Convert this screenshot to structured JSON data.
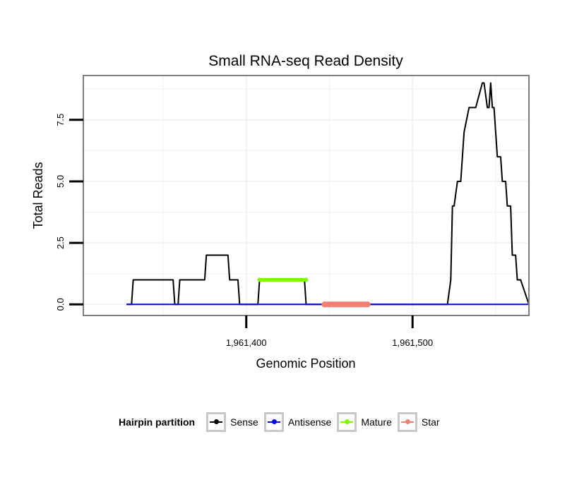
{
  "chart_data": {
    "type": "line",
    "title": "Small RNA-seq Read Density",
    "xlabel": "Genomic Position",
    "ylabel": "Total Reads",
    "xlim": [
      1961302,
      1961570
    ],
    "ylim": [
      -0.45,
      9.3
    ],
    "xticks": [
      1961400,
      1961500
    ],
    "xtick_labels": [
      "1,961,400",
      "1,961,500"
    ],
    "yticks": [
      0,
      2.5,
      5,
      7.5
    ],
    "ytick_labels": [
      "0.0",
      "2.5",
      "5.0",
      "7.5"
    ],
    "grid": true,
    "legend_title": "Hairpin partition",
    "series": [
      {
        "name": "Sense",
        "color": "#000000",
        "x": [
          1961328,
          1961331,
          1961332,
          1961356,
          1961357,
          1961359,
          1961360,
          1961375,
          1961376,
          1961389,
          1961390,
          1961395,
          1961396,
          1961407,
          1961408,
          1961435,
          1961436,
          1961521,
          1961523,
          1961524,
          1961525,
          1961527,
          1961529,
          1961530,
          1961531,
          1961534,
          1961537,
          1961538,
          1961542,
          1961543,
          1961545,
          1961546,
          1961547,
          1961548,
          1961549,
          1961550,
          1961551,
          1961553,
          1961554,
          1961556,
          1961557,
          1961559,
          1961560,
          1961562,
          1961563,
          1961564,
          1961565,
          1961570
        ],
        "y": [
          0,
          0,
          1,
          1,
          0,
          0,
          1,
          1,
          2,
          2,
          1,
          1,
          0,
          0,
          1,
          1,
          0,
          0,
          1,
          4,
          4,
          5,
          5,
          6,
          7,
          8,
          8,
          8,
          9,
          9,
          8,
          8,
          9,
          8,
          8,
          7,
          6,
          6,
          5,
          5,
          4,
          4,
          2,
          2,
          1,
          1,
          1,
          0
        ]
      },
      {
        "name": "Antisense",
        "color": "#0000ff",
        "x": [
          1961328,
          1961570
        ],
        "y": [
          0,
          0
        ]
      },
      {
        "name": "Mature",
        "color": "#7cfc00",
        "x": [
          1961408,
          1961436
        ],
        "y": [
          1,
          1
        ]
      },
      {
        "name": "Star",
        "color": "#f08070",
        "x": [
          1961447,
          1961473
        ],
        "y": [
          0,
          0
        ]
      }
    ]
  }
}
